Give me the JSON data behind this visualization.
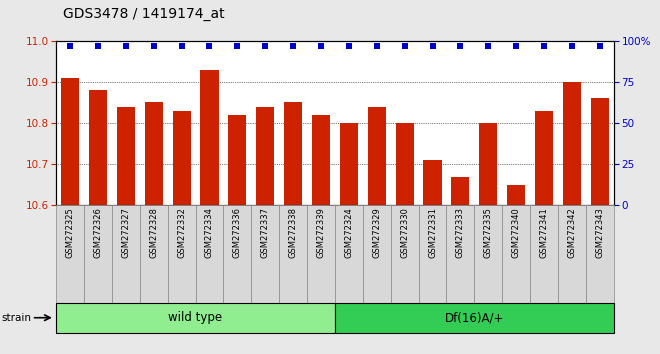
{
  "title": "GDS3478 / 1419174_at",
  "samples": [
    "GSM272325",
    "GSM272326",
    "GSM272327",
    "GSM272328",
    "GSM272332",
    "GSM272334",
    "GSM272336",
    "GSM272337",
    "GSM272338",
    "GSM272339",
    "GSM272324",
    "GSM272329",
    "GSM272330",
    "GSM272331",
    "GSM272333",
    "GSM272335",
    "GSM272340",
    "GSM272341",
    "GSM272342",
    "GSM272343"
  ],
  "bar_values": [
    10.91,
    10.88,
    10.84,
    10.85,
    10.83,
    10.93,
    10.82,
    10.84,
    10.85,
    10.82,
    10.8,
    10.84,
    10.8,
    10.71,
    10.67,
    10.8,
    10.65,
    10.83,
    10.9,
    10.86
  ],
  "percentile_values": [
    97,
    97,
    97,
    97,
    97,
    97,
    97,
    97,
    97,
    97,
    97,
    97,
    97,
    97,
    97,
    97,
    97,
    97,
    97,
    97
  ],
  "groups": [
    {
      "label": "wild type",
      "start": 0,
      "end": 10,
      "color": "#90EE90"
    },
    {
      "label": "Df(16)A/+",
      "start": 10,
      "end": 20,
      "color": "#33CC55"
    }
  ],
  "bar_color": "#CC2200",
  "dot_color": "#0000CC",
  "ylim_left": [
    10.6,
    11.0
  ],
  "ylim_right": [
    0,
    100
  ],
  "yticks_left": [
    10.6,
    10.7,
    10.8,
    10.9,
    11.0
  ],
  "yticks_right": [
    0,
    25,
    50,
    75,
    100
  ],
  "grid_lines": [
    10.7,
    10.8,
    10.9
  ],
  "background_color": "#e8e8e8",
  "plot_bg_color": "#ffffff",
  "xticklabel_bg": "#d8d8d8",
  "title_fontsize": 10,
  "tick_fontsize": 7.5,
  "bar_width": 0.65
}
